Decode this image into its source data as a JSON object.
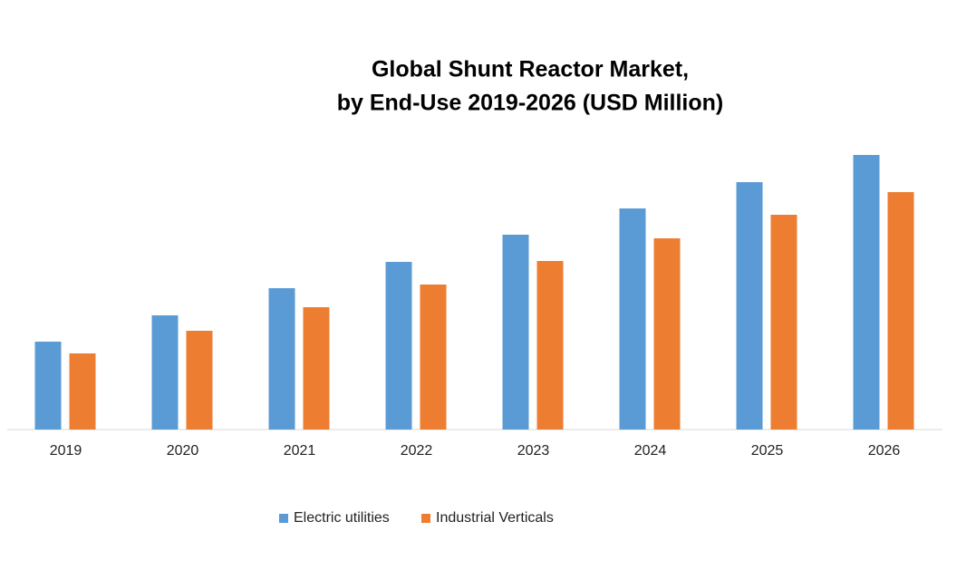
{
  "chart_data": {
    "type": "bar",
    "title": [
      "Global Shunt Reactor Market,",
      "by End-Use 2019-2026 (USD Million)"
    ],
    "categories": [
      "2019",
      "2020",
      "2021",
      "2022",
      "2023",
      "2024",
      "2025",
      "2026"
    ],
    "series": [
      {
        "name": "Electric utilities",
        "color": "#5b9bd5",
        "values": [
          97,
          126,
          156,
          185,
          215,
          244,
          273,
          303
        ]
      },
      {
        "name": "Industrial Verticals",
        "color": "#ed7d31",
        "values": [
          84,
          109,
          135,
          160,
          186,
          211,
          237,
          262
        ]
      }
    ],
    "ylim": [
      0,
      330
    ],
    "legend": "bottom"
  }
}
